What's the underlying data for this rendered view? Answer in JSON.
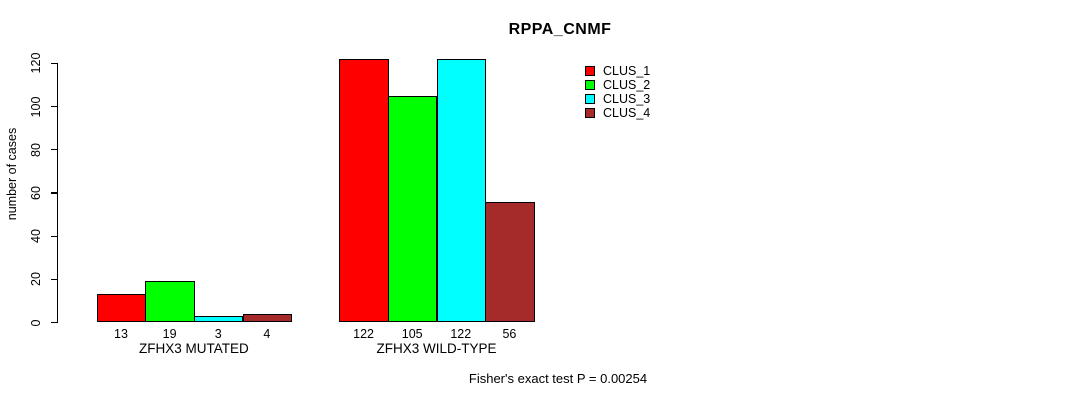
{
  "chart_data": {
    "type": "bar",
    "title": "RPPA_CNMF",
    "xlabel": "",
    "ylabel": "number of cases",
    "ylim": [
      0,
      120
    ],
    "yticks": [
      0,
      20,
      40,
      60,
      80,
      100,
      120
    ],
    "grid": false,
    "legend_position": "right-top",
    "bar_value_labels": true,
    "categories": [
      "ZFHX3 MUTATED",
      "ZFHX3 WILD-TYPE"
    ],
    "series": [
      {
        "name": "CLUS_1",
        "color": "#FF0000",
        "values": [
          13,
          122
        ]
      },
      {
        "name": "CLUS_2",
        "color": "#00FF00",
        "values": [
          19,
          105
        ]
      },
      {
        "name": "CLUS_3",
        "color": "#00FFFF",
        "values": [
          3,
          122
        ]
      },
      {
        "name": "CLUS_4",
        "color": "#A52A2A",
        "values": [
          4,
          56
        ]
      }
    ],
    "groups": [
      {
        "label": "ZFHX3 MUTATED",
        "values": [
          13,
          19,
          3,
          4
        ]
      },
      {
        "label": "ZFHX3 WILD-TYPE",
        "values": [
          122,
          105,
          122,
          56
        ]
      }
    ],
    "annotation": "Fisher's exact test P = 0.00254"
  }
}
